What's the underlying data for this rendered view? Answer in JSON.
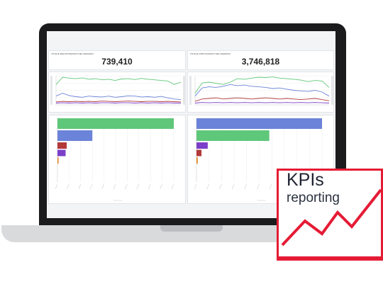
{
  "kpis": [
    {
      "title": "TOTALE REGISTRAZIONI NEL PERIODO",
      "value": "739,410"
    },
    {
      "title": "TOTALE APPLICAZIONI NEL PERIODO",
      "value": "3,746,818"
    }
  ],
  "badge": {
    "title": "KPIs",
    "subtitle": "reporting",
    "accent": "#e51b35"
  },
  "colors": {
    "green": "#5fc77a",
    "blue": "#6b83d8",
    "red": "#b23a3a",
    "purple": "#7b3fc9",
    "orange": "#e08a2e"
  },
  "chart_data": [
    {
      "type": "line",
      "x": [
        1,
        2,
        3,
        4,
        5,
        6,
        7,
        8,
        9,
        10,
        11,
        12,
        13,
        14,
        15,
        16,
        17,
        18,
        19,
        20
      ],
      "series": [
        {
          "values": [
            70,
            95,
            92,
            90,
            93,
            88,
            90,
            86,
            88,
            84,
            89,
            90,
            87,
            91,
            88,
            86,
            84,
            82,
            70,
            78
          ]
        },
        {
          "values": [
            30,
            40,
            32,
            28,
            26,
            30,
            28,
            27,
            30,
            26,
            28,
            31,
            30,
            27,
            28,
            26,
            29,
            24,
            20,
            18
          ]
        },
        {
          "values": [
            10,
            12,
            11,
            12,
            11,
            12,
            11,
            13,
            12,
            11,
            12,
            13,
            12,
            11,
            12,
            12,
            11,
            12,
            11,
            10
          ]
        },
        {
          "values": [
            6,
            7,
            6,
            7,
            6,
            7,
            6,
            7,
            7,
            6,
            7,
            7,
            6,
            7,
            6,
            7,
            6,
            7,
            6,
            6
          ]
        }
      ]
    },
    {
      "type": "line",
      "x": [
        1,
        2,
        3,
        4,
        5,
        6,
        7,
        8,
        9,
        10,
        11,
        12,
        13,
        14,
        15,
        16,
        17,
        18,
        19,
        20
      ],
      "series": [
        {
          "values": [
            40,
            75,
            78,
            74,
            70,
            78,
            90,
            88,
            92,
            95,
            94,
            96,
            92,
            90,
            88,
            85,
            80,
            84,
            82,
            60
          ]
        },
        {
          "values": [
            30,
            58,
            62,
            60,
            64,
            70,
            66,
            68,
            64,
            62,
            60,
            56,
            58,
            54,
            50,
            48,
            46,
            50,
            44,
            30
          ]
        },
        {
          "values": [
            12,
            20,
            22,
            24,
            20,
            22,
            24,
            22,
            20,
            22,
            24,
            22,
            20,
            22,
            20,
            18,
            20,
            22,
            18,
            14
          ]
        },
        {
          "values": [
            6,
            8,
            7,
            8,
            7,
            8,
            7,
            8,
            7,
            8,
            7,
            8,
            7,
            8,
            7,
            8,
            7,
            8,
            7,
            6
          ]
        }
      ]
    },
    {
      "type": "bar",
      "orientation": "horizontal",
      "values": [
        100,
        30,
        8,
        7,
        1
      ],
      "xlim": [
        0,
        100
      ]
    },
    {
      "type": "bar",
      "orientation": "horizontal",
      "values": [
        100,
        58,
        9,
        4,
        1
      ],
      "xlim": [
        0,
        100
      ]
    }
  ]
}
